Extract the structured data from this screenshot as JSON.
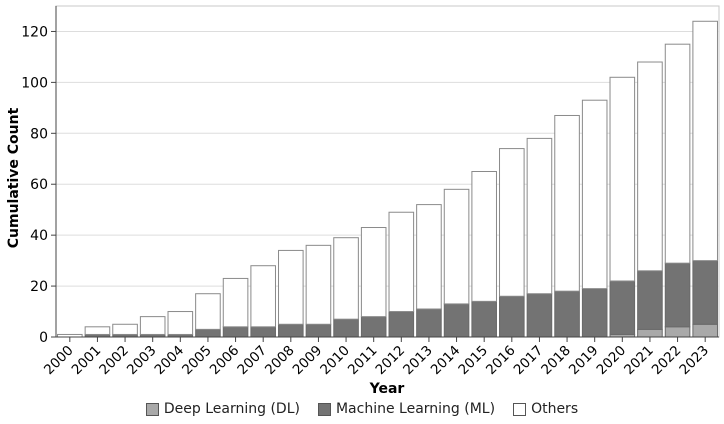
{
  "chart_data": {
    "type": "bar",
    "stacked": true,
    "title": "",
    "xlabel": "Year",
    "ylabel": "Cumulative Count",
    "ylim": [
      0,
      130
    ],
    "yticks": [
      0,
      20,
      40,
      60,
      80,
      100,
      120
    ],
    "grid": true,
    "legend_position": "bottom",
    "categories": [
      "2000",
      "2001",
      "2002",
      "2003",
      "2004",
      "2005",
      "2006",
      "2007",
      "2008",
      "2009",
      "2010",
      "2011",
      "2012",
      "2013",
      "2014",
      "2015",
      "2016",
      "2017",
      "2018",
      "2019",
      "2020",
      "2021",
      "2022",
      "2023"
    ],
    "series": [
      {
        "name": "Deep Learning (DL)",
        "color": "#a9a9a9",
        "values": [
          0,
          0,
          0,
          0,
          0,
          0,
          0,
          0,
          0,
          0,
          0,
          0,
          0,
          0,
          0,
          0,
          0,
          0,
          0,
          0,
          1,
          3,
          4,
          5
        ]
      },
      {
        "name": "Machine Learning (ML)",
        "color": "#737373",
        "values": [
          0,
          1,
          1,
          1,
          1,
          3,
          4,
          4,
          5,
          5,
          7,
          8,
          10,
          11,
          13,
          14,
          16,
          17,
          18,
          19,
          21,
          23,
          25,
          25
        ]
      },
      {
        "name": "Others",
        "color": "#ffffff",
        "values": [
          1,
          3,
          4,
          7,
          9,
          14,
          19,
          24,
          29,
          31,
          32,
          35,
          39,
          41,
          45,
          51,
          58,
          61,
          69,
          74,
          80,
          82,
          86,
          94
        ]
      }
    ]
  }
}
